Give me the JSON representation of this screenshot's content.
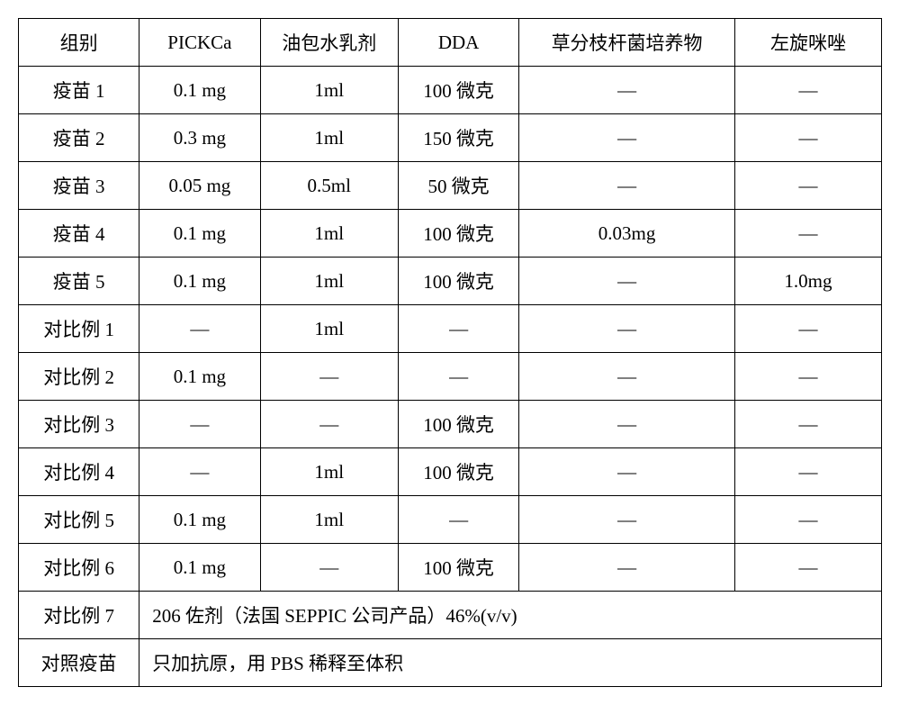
{
  "table": {
    "headers": {
      "group": "组别",
      "pickca": "PICKCa",
      "emulsion": "油包水乳剂",
      "dda": "DDA",
      "myco": "草分枝杆菌培养物",
      "lev": "左旋咪唑"
    },
    "rows": [
      {
        "group": "疫苗 1",
        "pickca": "0.1 mg",
        "emulsion": "1ml",
        "dda": "100 微克",
        "myco": "—",
        "lev": "—"
      },
      {
        "group": "疫苗 2",
        "pickca": "0.3 mg",
        "emulsion": "1ml",
        "dda": "150 微克",
        "myco": "—",
        "lev": "—"
      },
      {
        "group": "疫苗 3",
        "pickca": "0.05 mg",
        "emulsion": "0.5ml",
        "dda": "50 微克",
        "myco": "—",
        "lev": "—"
      },
      {
        "group": "疫苗 4",
        "pickca": "0.1 mg",
        "emulsion": "1ml",
        "dda": "100 微克",
        "myco": "0.03mg",
        "lev": "—"
      },
      {
        "group": "疫苗 5",
        "pickca": "0.1 mg",
        "emulsion": "1ml",
        "dda": "100 微克",
        "myco": "—",
        "lev": "1.0mg"
      },
      {
        "group": "对比例 1",
        "pickca": "—",
        "emulsion": "1ml",
        "dda": "—",
        "myco": "—",
        "lev": "—"
      },
      {
        "group": "对比例 2",
        "pickca": "0.1 mg",
        "emulsion": "—",
        "dda": "—",
        "myco": "—",
        "lev": "—"
      },
      {
        "group": "对比例 3",
        "pickca": "—",
        "emulsion": "—",
        "dda": "100 微克",
        "myco": "—",
        "lev": "—"
      },
      {
        "group": "对比例 4",
        "pickca": "—",
        "emulsion": "1ml",
        "dda": "100 微克",
        "myco": "—",
        "lev": "—"
      },
      {
        "group": "对比例 5",
        "pickca": "0.1 mg",
        "emulsion": "1ml",
        "dda": "—",
        "myco": "—",
        "lev": "—"
      },
      {
        "group": "对比例 6",
        "pickca": "0.1 mg",
        "emulsion": "—",
        "dda": "100 微克",
        "myco": "—",
        "lev": "—"
      }
    ],
    "merged_rows": [
      {
        "group": "对比例 7",
        "text": "206 佐剂（法国 SEPPIC 公司产品）46%(v/v)"
      },
      {
        "group": "对照疫苗",
        "text": "只加抗原，用 PBS 稀释至体积"
      }
    ]
  }
}
